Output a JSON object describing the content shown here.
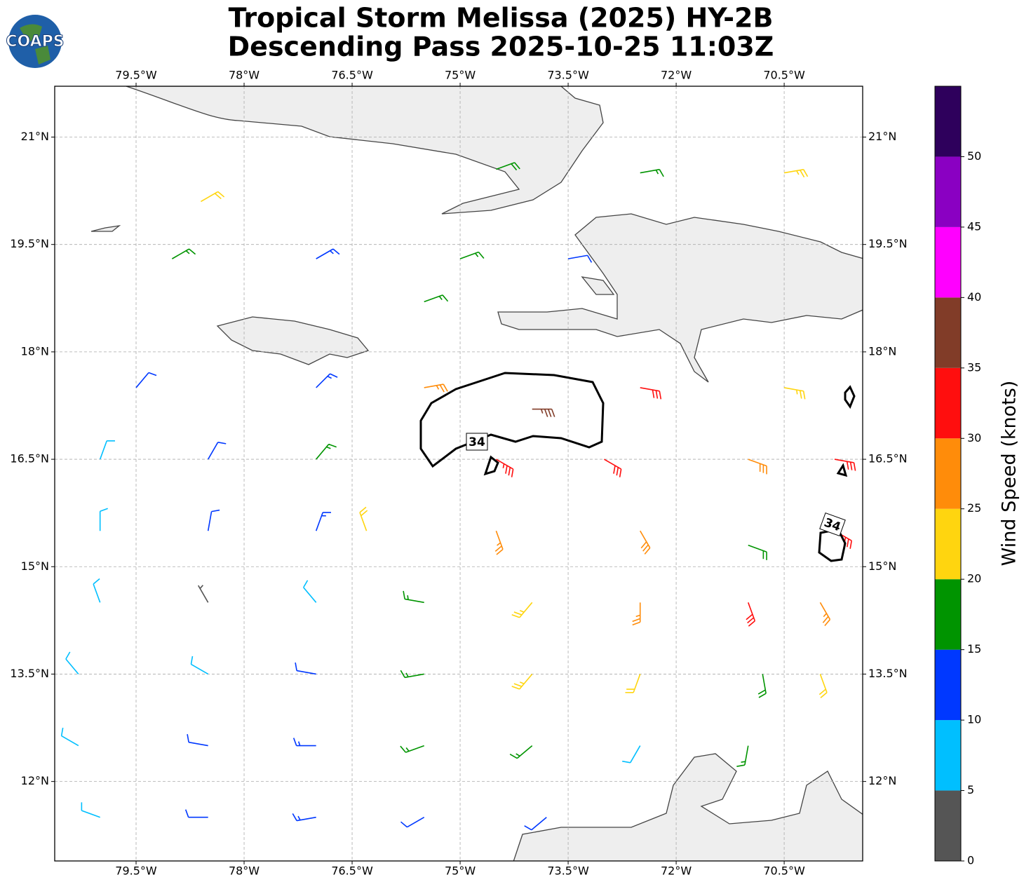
{
  "logo_text": "COAPS",
  "chart_data": {
    "type": "barbs",
    "title": [
      "Tropical Storm Melissa (2025) HY-2B",
      "Descending Pass 2025-10-25 11:03Z"
    ],
    "xlim": [
      -80.63,
      -69.41
    ],
    "ylim": [
      10.89,
      21.71
    ],
    "xticks": [
      {
        "value": -79.5,
        "label": "79.5°W"
      },
      {
        "value": -78,
        "label": "78°W"
      },
      {
        "value": -76.5,
        "label": "76.5°W"
      },
      {
        "value": -75,
        "label": "75°W"
      },
      {
        "value": -73.5,
        "label": "73.5°W"
      },
      {
        "value": -72,
        "label": "72°W"
      },
      {
        "value": -70.5,
        "label": "70.5°W"
      }
    ],
    "yticks": [
      {
        "value": 12,
        "label": "12°N"
      },
      {
        "value": 13.5,
        "label": "13.5°N"
      },
      {
        "value": 15,
        "label": "15°N"
      },
      {
        "value": 16.5,
        "label": "16.5°N"
      },
      {
        "value": 18,
        "label": "18°N"
      },
      {
        "value": 19.5,
        "label": "19.5°N"
      },
      {
        "value": 21,
        "label": "21°N"
      }
    ],
    "grid": true,
    "barbs": {
      "lon": [
        -78.6,
        -74.5,
        -72.5,
        -70.5,
        -79,
        -77,
        -75,
        -73.5,
        -75.5,
        -79.5,
        -77,
        -75.5,
        -74,
        -72.5,
        -70.5,
        -80,
        -78.5,
        -77,
        -74.5,
        -73,
        -71,
        -69.8,
        -80,
        -78.5,
        -77,
        -76.3,
        -74.5,
        -72.5,
        -71,
        -69.8,
        -80,
        -78.5,
        -77,
        -75.5,
        -74,
        -72.5,
        -71,
        -70,
        -80.3,
        -78.5,
        -77,
        -75.5,
        -74,
        -72.5,
        -70.8,
        -70,
        -80.3,
        -78.5,
        -77,
        -75.5,
        -74,
        -72.5,
        -71,
        -80,
        -78.5,
        -77,
        -75.5,
        -73.8
      ],
      "lat": [
        20.1,
        20.55,
        20.5,
        20.5,
        19.3,
        19.3,
        19.3,
        19.3,
        18.7,
        17.5,
        17.5,
        17.5,
        17.2,
        17.5,
        17.5,
        16.5,
        16.5,
        16.5,
        16.5,
        16.5,
        16.5,
        16.5,
        15.5,
        15.5,
        15.5,
        15.5,
        15.5,
        15.5,
        15.3,
        15.5,
        14.5,
        14.5,
        14.5,
        14.5,
        14.5,
        14.5,
        14.5,
        14.5,
        13.5,
        13.5,
        13.5,
        13.5,
        13.5,
        13.5,
        13.5,
        13.5,
        12.5,
        12.5,
        12.5,
        12.5,
        12.5,
        12.5,
        12.5,
        11.5,
        11.5,
        11.5,
        11.5,
        11.5
      ],
      "speed": [
        22,
        18,
        17,
        23,
        17,
        13,
        16,
        12,
        17,
        12,
        13,
        27,
        37,
        32,
        24,
        8,
        12,
        17,
        33,
        32,
        28,
        31,
        9,
        12,
        14,
        22,
        27,
        28,
        18,
        32,
        9,
        4,
        9,
        17,
        24,
        27,
        32,
        27,
        8,
        9,
        12,
        16,
        23,
        22,
        18,
        22,
        8,
        12,
        13,
        17,
        16,
        8,
        17,
        8,
        12,
        13,
        12,
        11
      ],
      "direction": [
        60,
        70,
        80,
        80,
        60,
        60,
        70,
        80,
        70,
        40,
        45,
        80,
        90,
        100,
        100,
        20,
        30,
        40,
        120,
        120,
        110,
        100,
        0,
        10,
        20,
        340,
        160,
        150,
        110,
        120,
        340,
        330,
        320,
        280,
        220,
        180,
        160,
        150,
        320,
        300,
        280,
        260,
        220,
        200,
        170,
        160,
        300,
        280,
        270,
        250,
        230,
        210,
        190,
        290,
        270,
        260,
        240,
        230
      ]
    },
    "colorbar": {
      "label": "Wind Speed (knots)",
      "lim": [
        0,
        55
      ],
      "bounds": [
        0,
        5,
        10,
        15,
        20,
        25,
        30,
        35,
        40,
        45,
        50,
        55
      ],
      "colors": [
        "#555555",
        "#00bfff",
        "#0038ff",
        "#009400",
        "#ffd50f",
        "#ff8c0a",
        "#ff0e0e",
        "#813c28",
        "#ff00ff",
        "#8a00c2",
        "#2e005c"
      ],
      "ticks": [
        0,
        5,
        10,
        15,
        20,
        25,
        30,
        35,
        40,
        45,
        50
      ]
    },
    "contour_level": 34
  }
}
